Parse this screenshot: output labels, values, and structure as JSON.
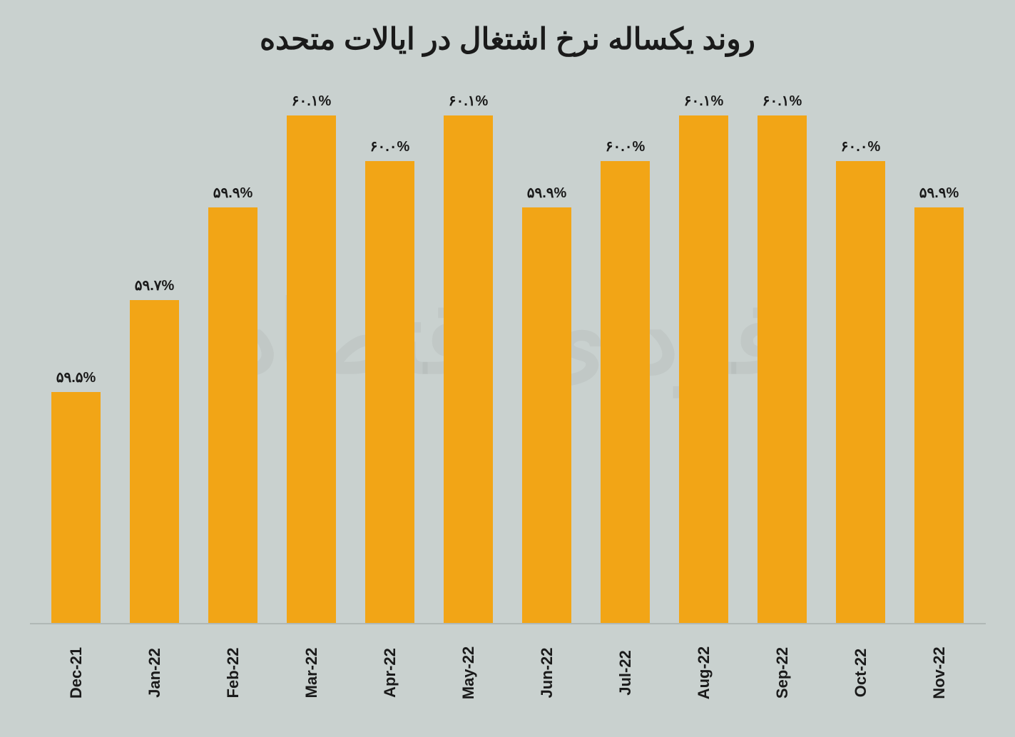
{
  "chart": {
    "type": "bar",
    "title": "روند یکساله نرخ اشتغال در ایالات متحده",
    "title_fontsize": 42,
    "title_color": "#1a1a1a",
    "background_color": "#c9d1cf",
    "bar_color": "#f2a516",
    "axis_color": "#b0b8b6",
    "value_label_fontsize": 20,
    "value_label_color": "#1a1a1a",
    "x_label_fontsize": 22,
    "x_label_color": "#1a1a1a",
    "x_label_rotation": -90,
    "bar_width": 0.62,
    "y_min": 59.0,
    "y_max": 60.15,
    "watermark_text": "فردای اقتصاد",
    "watermark_color": "rgba(0,0,0,0.04)",
    "categories": [
      "Dec-21",
      "Jan-22",
      "Feb-22",
      "Mar-22",
      "Apr-22",
      "May-22",
      "Jun-22",
      "Jul-22",
      "Aug-22",
      "Sep-22",
      "Oct-22",
      "Nov-22"
    ],
    "values": [
      59.5,
      59.7,
      59.9,
      60.1,
      60.0,
      60.1,
      59.9,
      60.0,
      60.1,
      60.1,
      60.0,
      59.9
    ],
    "value_labels": [
      "۵۹.۵%",
      "۵۹.۷%",
      "۵۹.۹%",
      "۶۰.۱%",
      "۶۰.۰%",
      "۶۰.۱%",
      "۵۹.۹%",
      "۶۰.۰%",
      "۶۰.۱%",
      "۶۰.۱%",
      "۶۰.۰%",
      "۵۹.۹%"
    ]
  }
}
